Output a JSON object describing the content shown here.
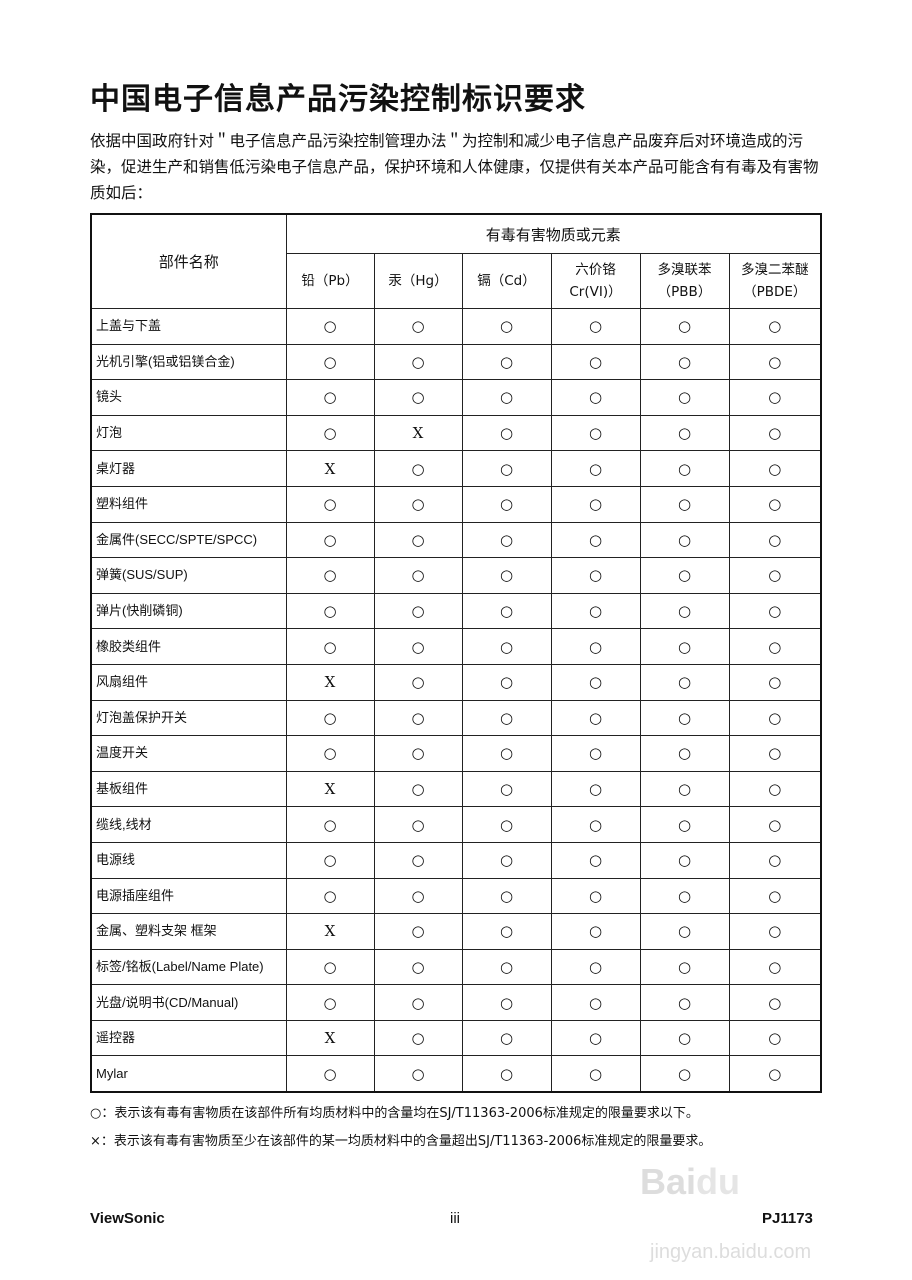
{
  "title": "中国电子信息产品污染控制标识要求",
  "intro": "依据中国政府针对＂电子信息产品污染控制管理办法＂为控制和减少电子信息产品废弃后对环境造成的污染，促进生产和销售低污染电子信息产品，保护环境和人体健康，仅提供有关本产品可能含有有毒及有害物质如后：",
  "table": {
    "part_header": "部件名称",
    "group_header": "有毒有害物质或元素",
    "columns": [
      [
        "铅（Pb）",
        ""
      ],
      [
        "汞（Hg）",
        ""
      ],
      [
        "镉（Cd）",
        ""
      ],
      [
        "六价铬",
        "Cr(VI)）"
      ],
      [
        "多溴联苯",
        "（PBB）"
      ],
      [
        "多溴二苯醚",
        "（PBDE）"
      ]
    ],
    "rows": [
      {
        "name": "上盖与下盖",
        "v": [
          "○",
          "○",
          "○",
          "○",
          "○",
          "○"
        ]
      },
      {
        "name": "光机引擎(铝或铝镁合金)",
        "v": [
          "○",
          "○",
          "○",
          "○",
          "○",
          "○"
        ]
      },
      {
        "name": "镜头",
        "v": [
          "○",
          "○",
          "○",
          "○",
          "○",
          "○"
        ]
      },
      {
        "name": "灯泡",
        "v": [
          "○",
          "X",
          "○",
          "○",
          "○",
          "○"
        ]
      },
      {
        "name": "桌灯器",
        "v": [
          "X",
          "○",
          "○",
          "○",
          "○",
          "○"
        ]
      },
      {
        "name": "塑料组件",
        "v": [
          "○",
          "○",
          "○",
          "○",
          "○",
          "○"
        ]
      },
      {
        "name": "金属件(SECC/SPTE/SPCC)",
        "v": [
          "○",
          "○",
          "○",
          "○",
          "○",
          "○"
        ]
      },
      {
        "name": "弹簧(SUS/SUP)",
        "v": [
          "○",
          "○",
          "○",
          "○",
          "○",
          "○"
        ]
      },
      {
        "name": "弹片(快削磷铜)",
        "v": [
          "○",
          "○",
          "○",
          "○",
          "○",
          "○"
        ]
      },
      {
        "name": "橡胶类组件",
        "v": [
          "○",
          "○",
          "○",
          "○",
          "○",
          "○"
        ]
      },
      {
        "name": "风扇组件",
        "v": [
          "X",
          "○",
          "○",
          "○",
          "○",
          "○"
        ]
      },
      {
        "name": "灯泡盖保护开关",
        "v": [
          "○",
          "○",
          "○",
          "○",
          "○",
          "○"
        ]
      },
      {
        "name": "温度开关",
        "v": [
          "○",
          "○",
          "○",
          "○",
          "○",
          "○"
        ]
      },
      {
        "name": "基板组件",
        "v": [
          "X",
          "○",
          "○",
          "○",
          "○",
          "○"
        ]
      },
      {
        "name": "缆线,线材",
        "v": [
          "○",
          "○",
          "○",
          "○",
          "○",
          "○"
        ]
      },
      {
        "name": "电源线",
        "v": [
          "○",
          "○",
          "○",
          "○",
          "○",
          "○"
        ]
      },
      {
        "name": "电源插座组件",
        "v": [
          "○",
          "○",
          "○",
          "○",
          "○",
          "○"
        ]
      },
      {
        "name": "金属、塑料支架 框架",
        "v": [
          "X",
          "○",
          "○",
          "○",
          "○",
          "○"
        ]
      },
      {
        "name": "标签/铭板(Label/Name Plate)",
        "v": [
          "○",
          "○",
          "○",
          "○",
          "○",
          "○"
        ]
      },
      {
        "name": "光盘/说明书(CD/Manual)",
        "v": [
          "○",
          "○",
          "○",
          "○",
          "○",
          "○"
        ]
      },
      {
        "name": "遥控器",
        "v": [
          "X",
          "○",
          "○",
          "○",
          "○",
          "○"
        ]
      },
      {
        "name": "Mylar",
        "v": [
          "○",
          "○",
          "○",
          "○",
          "○",
          "○"
        ]
      }
    ]
  },
  "notes": [
    "○：表示该有毒有害物质在该部件所有均质材料中的含量均在SJ/T11363-2006标准规定的限量要求以下。",
    "×：表示该有毒有害物质至少在该部件的某一均质材料中的含量超出SJ/T11363-2006标准规定的限量要求。"
  ],
  "footer": {
    "brand": "ViewSonic",
    "page": "iii",
    "model": "PJ1173"
  },
  "watermark": {
    "logo": "Bai du 经验",
    "url": "jingyan.baidu.com"
  }
}
